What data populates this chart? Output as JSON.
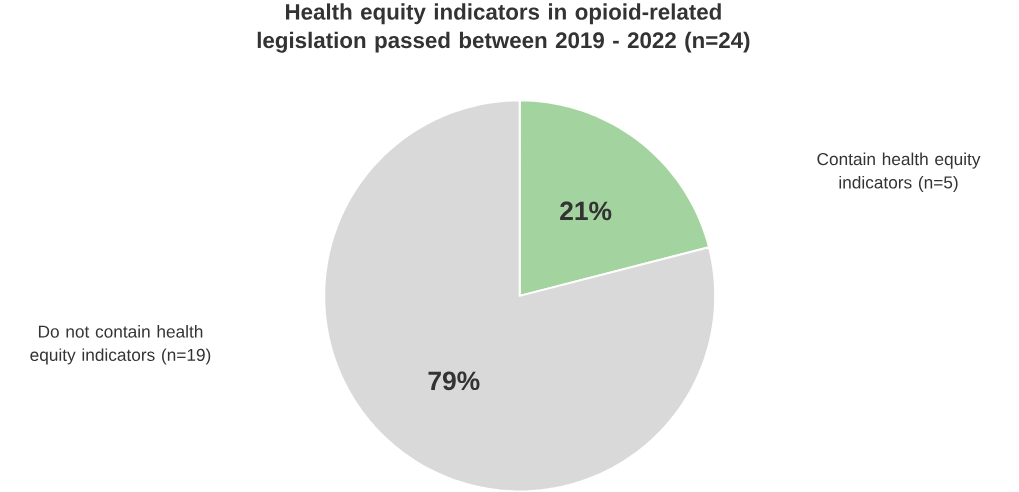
{
  "chart_data": {
    "type": "pie",
    "title": "Health equity indicators in opioid-related legislation passed between 2019 - 2022 (n=24)",
    "categories": [
      "Contain health equity indicators (n=5)",
      "Do not contain health equity indicators (n=19)"
    ],
    "values": [
      21,
      79
    ],
    "colors": [
      "#a3d49f",
      "#d9d9d9"
    ],
    "value_labels": [
      "21%",
      "79%"
    ]
  }
}
